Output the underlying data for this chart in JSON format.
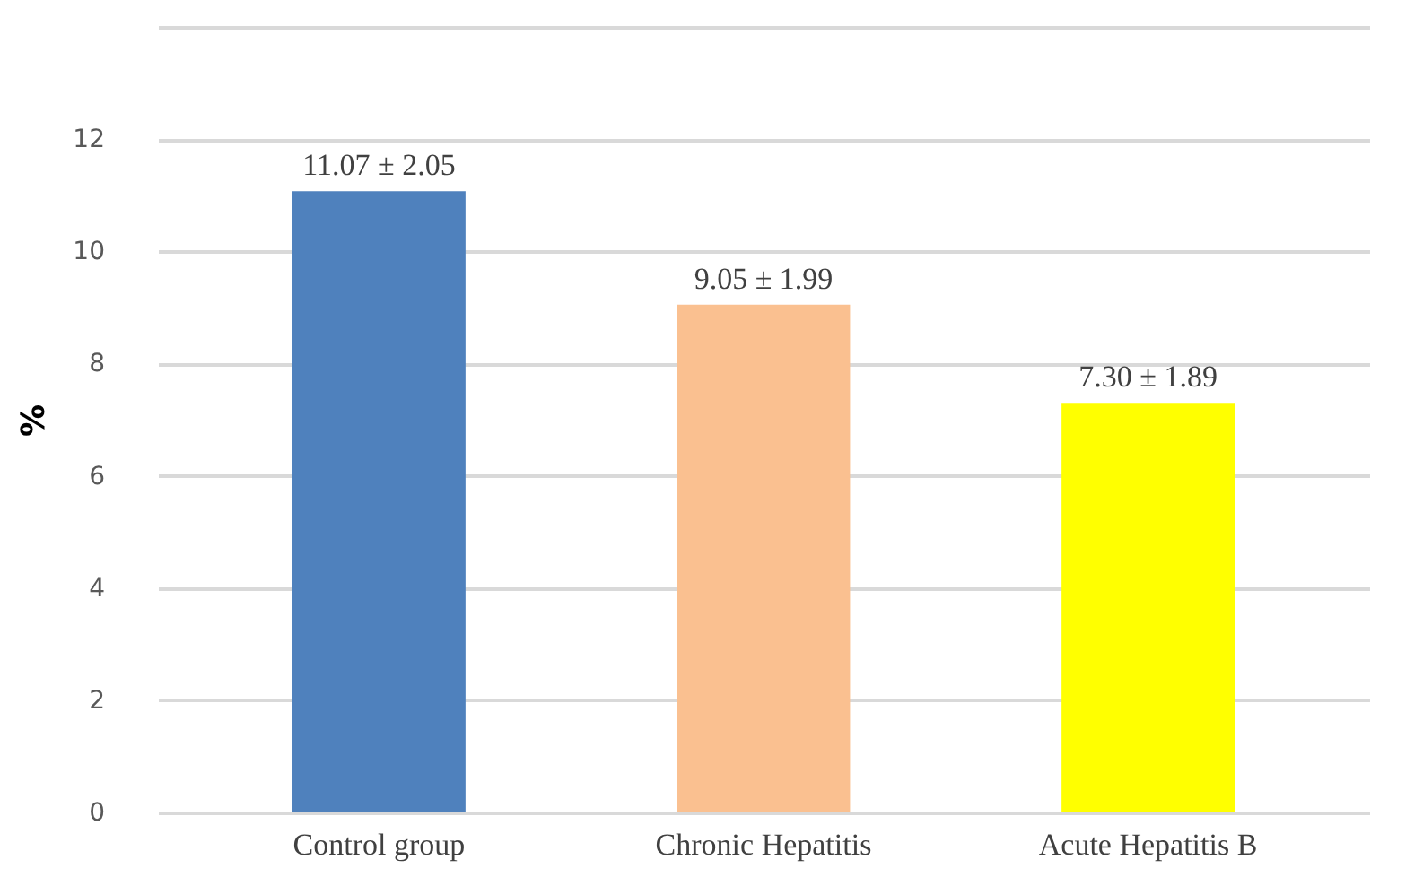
{
  "chart_data": {
    "type": "bar",
    "ylabel": "%",
    "categories": [
      "Control group",
      "Chronic Hepatitis",
      "Acute Hepatitis B"
    ],
    "values": [
      11.07,
      9.05,
      7.3
    ],
    "colors": [
      "#4f81bd",
      "#fac090",
      "#ffff00"
    ],
    "value_labels": [
      "11.07 ± 2.05",
      "9.05 ± 1.99",
      "7.30 ± 1.89"
    ],
    "ylim": [
      0,
      14
    ],
    "yticks": [
      0,
      2,
      4,
      6,
      8,
      10,
      12,
      {
        "value": 14,
        "label": null
      }
    ],
    "grid": "y"
  }
}
